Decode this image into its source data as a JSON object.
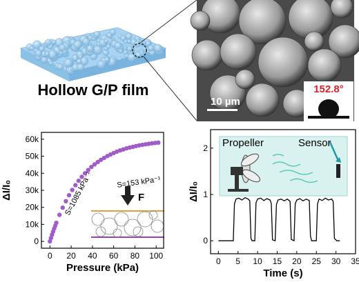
{
  "panels": {
    "film_label": "Hollow G/P film",
    "scale_bar": "10 µm",
    "contact_angle": "152.8°"
  },
  "chart_data": [
    {
      "type": "scatter",
      "x_label": "Pressure (kPa)",
      "y_label": "ΔI/I₀",
      "annotations": [
        "S=1085 kPa⁻¹",
        "S=153 kPa⁻¹",
        "F"
      ],
      "color": "#a05cc8",
      "x": [
        0,
        1,
        2,
        3,
        4,
        5,
        6,
        9,
        12,
        15,
        18,
        21,
        24,
        27,
        30,
        33,
        36,
        39,
        42,
        45,
        48,
        51,
        54,
        57,
        60,
        63,
        66,
        69,
        72,
        75,
        78,
        81,
        84,
        87,
        90,
        93,
        96,
        99,
        102
      ],
      "values": [
        0,
        2000,
        3900,
        5700,
        7500,
        9200,
        10900,
        15600,
        19800,
        23600,
        27100,
        30200,
        33000,
        35600,
        37900,
        40000,
        41900,
        43700,
        45200,
        46600,
        47900,
        49000,
        50100,
        51000,
        51900,
        52700,
        53400,
        54000,
        54600,
        55100,
        55500,
        56000,
        56400,
        56700,
        57000,
        57300,
        57600,
        57800,
        58000
      ],
      "xlim": [
        -8,
        107
      ],
      "xticks": [
        0,
        20,
        40,
        60,
        80,
        100
      ],
      "ylim": [
        -4000,
        64000
      ],
      "yticks": [
        0,
        {
          "value": 10000,
          "label": "10k"
        },
        {
          "value": 20000,
          "label": "20k"
        },
        {
          "value": 30000,
          "label": "30k"
        },
        {
          "value": 40000,
          "label": "40k"
        },
        {
          "value": 50000,
          "label": "50k"
        },
        {
          "value": 60000,
          "label": "60k"
        }
      ]
    },
    {
      "type": "line",
      "x_label": "Time (s)",
      "y_label": "ΔI/I₀",
      "annotations": [
        "Propeller",
        "Sensor"
      ],
      "color": "#000000",
      "x": [
        0,
        3.8,
        4.1,
        4.5,
        5.2,
        6,
        6.8,
        7.6,
        8,
        8.3,
        8.6,
        9.3,
        9.6,
        10,
        10.8,
        11.6,
        12.4,
        13.2,
        13.5,
        13.8,
        14.5,
        14.8,
        15.2,
        16,
        16.8,
        17.6,
        18.3,
        18.6,
        19.3,
        19.6,
        20,
        20.8,
        21.6,
        22.4,
        23.2,
        23.5,
        23.8,
        25,
        25.3,
        25.7,
        26.5,
        27.3,
        28.1,
        28.9,
        29.3,
        29.6,
        30.2,
        31
      ],
      "values": [
        0,
        0,
        0.8,
        0.9,
        0.92,
        0.88,
        0.93,
        0.9,
        0.86,
        0.05,
        0,
        0,
        0.82,
        0.9,
        0.92,
        0.87,
        0.91,
        0.88,
        0.8,
        0.02,
        0,
        0.78,
        0.88,
        0.9,
        0.86,
        0.9,
        0.85,
        0.03,
        0,
        0.8,
        0.88,
        0.91,
        0.86,
        0.9,
        0.87,
        0.1,
        0,
        0,
        0.8,
        0.9,
        0.87,
        0.92,
        0.88,
        0.9,
        0.85,
        0.05,
        0,
        0
      ],
      "xlim": [
        -2,
        35
      ],
      "xticks": [
        0,
        5,
        10,
        15,
        20,
        25,
        30,
        35
      ],
      "ylim": [
        -0.28,
        2.4
      ],
      "yticks": [
        0,
        1,
        2
      ]
    }
  ]
}
